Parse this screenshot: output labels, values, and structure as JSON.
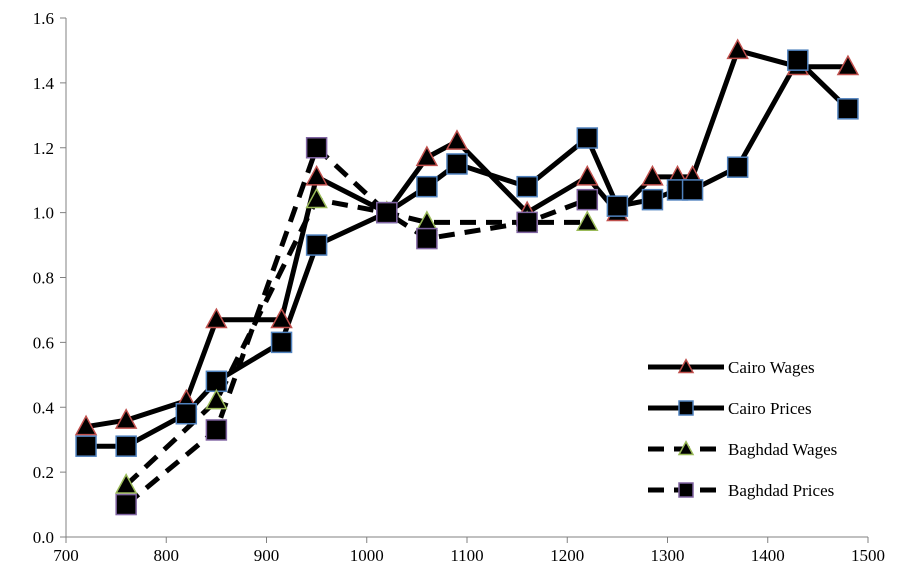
{
  "chart_data": {
    "type": "line",
    "title": "",
    "xlabel": "",
    "ylabel": "",
    "xlim": [
      700,
      1500
    ],
    "ylim": [
      0,
      1.6
    ],
    "x_ticks": [
      "700",
      "800",
      "900",
      "1000",
      "1100",
      "1200",
      "1300",
      "1400",
      "1500"
    ],
    "y_ticks": [
      "0.0",
      "0.2",
      "0.4",
      "0.6",
      "0.8",
      "1.0",
      "1.2",
      "1.4",
      "1.6"
    ],
    "grid": false,
    "legend_position": "bottom-right",
    "series": [
      {
        "name": "Cairo Wages",
        "line": "solid",
        "marker": "triangle",
        "marker_edge": "#c0504d",
        "marker_fill": "#000000",
        "points": [
          [
            720,
            0.34
          ],
          [
            760,
            0.36
          ],
          [
            820,
            0.42
          ],
          [
            850,
            0.67
          ],
          [
            915,
            0.67
          ],
          [
            950,
            1.11
          ],
          [
            1020,
            1.0
          ],
          [
            1060,
            1.17
          ],
          [
            1090,
            1.22
          ],
          [
            1160,
            1.0
          ],
          [
            1220,
            1.11
          ],
          [
            1250,
            1.0
          ],
          [
            1285,
            1.11
          ],
          [
            1310,
            1.11
          ],
          [
            1325,
            1.11
          ],
          [
            1370,
            1.5
          ],
          [
            1430,
            1.45
          ],
          [
            1480,
            1.45
          ]
        ]
      },
      {
        "name": "Cairo Prices",
        "line": "solid",
        "marker": "square",
        "marker_edge": "#4f81bd",
        "marker_fill": "#000000",
        "points": [
          [
            720,
            0.28
          ],
          [
            760,
            0.28
          ],
          [
            820,
            0.38
          ],
          [
            850,
            0.48
          ],
          [
            915,
            0.6
          ],
          [
            950,
            0.9
          ],
          [
            1020,
            1.0
          ],
          [
            1060,
            1.08
          ],
          [
            1090,
            1.15
          ],
          [
            1160,
            1.08
          ],
          [
            1220,
            1.23
          ],
          [
            1250,
            1.02
          ],
          [
            1285,
            1.04
          ],
          [
            1310,
            1.07
          ],
          [
            1325,
            1.07
          ],
          [
            1370,
            1.14
          ],
          [
            1430,
            1.47
          ],
          [
            1480,
            1.32
          ]
        ]
      },
      {
        "name": "Baghdad Wages",
        "line": "dashed",
        "marker": "triangle",
        "marker_edge": "#9bbb59",
        "marker_fill": "#000000",
        "points": [
          [
            760,
            0.16
          ],
          [
            850,
            0.42
          ],
          [
            950,
            1.04
          ],
          [
            1020,
            1.0
          ],
          [
            1060,
            0.97
          ],
          [
            1160,
            0.97
          ],
          [
            1220,
            0.97
          ]
        ]
      },
      {
        "name": "Baghdad Prices",
        "line": "dashed",
        "marker": "square",
        "marker_edge": "#8064a2",
        "marker_fill": "#000000",
        "points": [
          [
            760,
            0.1
          ],
          [
            850,
            0.33
          ],
          [
            950,
            1.2
          ],
          [
            1020,
            1.0
          ],
          [
            1060,
            0.92
          ],
          [
            1160,
            0.97
          ],
          [
            1220,
            1.04
          ]
        ]
      }
    ]
  }
}
